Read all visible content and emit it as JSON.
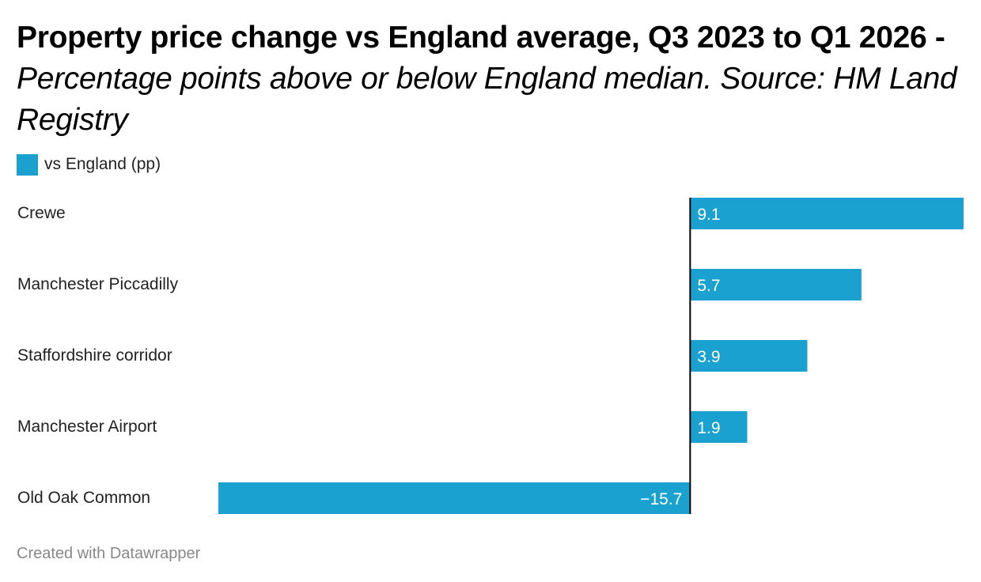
{
  "header": {
    "title": "Property price change vs England average, Q3 2023 to Q1 2026",
    "separator": " - ",
    "subtitle": "Percentage points above or below England median. Source: HM Land Registry"
  },
  "colors": {
    "bar": "#1aa1d0",
    "axis": "#000000",
    "label_text": "#222222",
    "value_text": "#ffffff"
  },
  "chart_data": {
    "type": "bar",
    "orientation": "horizontal",
    "categories": [
      "Crewe",
      "Manchester Piccadilly",
      "Staffordshire corridor",
      "Manchester Airport",
      "Old Oak Common"
    ],
    "series": [
      {
        "name": "vs England (pp)",
        "values": [
          9.1,
          5.7,
          3.9,
          1.9,
          -15.7
        ]
      }
    ],
    "value_labels": [
      "9.1",
      "5.7",
      "3.9",
      "1.9",
      "−15.7"
    ],
    "xlim": [
      -15.7,
      9.1
    ],
    "legend_position": "top-left",
    "grid": false
  },
  "footer": {
    "credit": "Created with Datawrapper"
  }
}
